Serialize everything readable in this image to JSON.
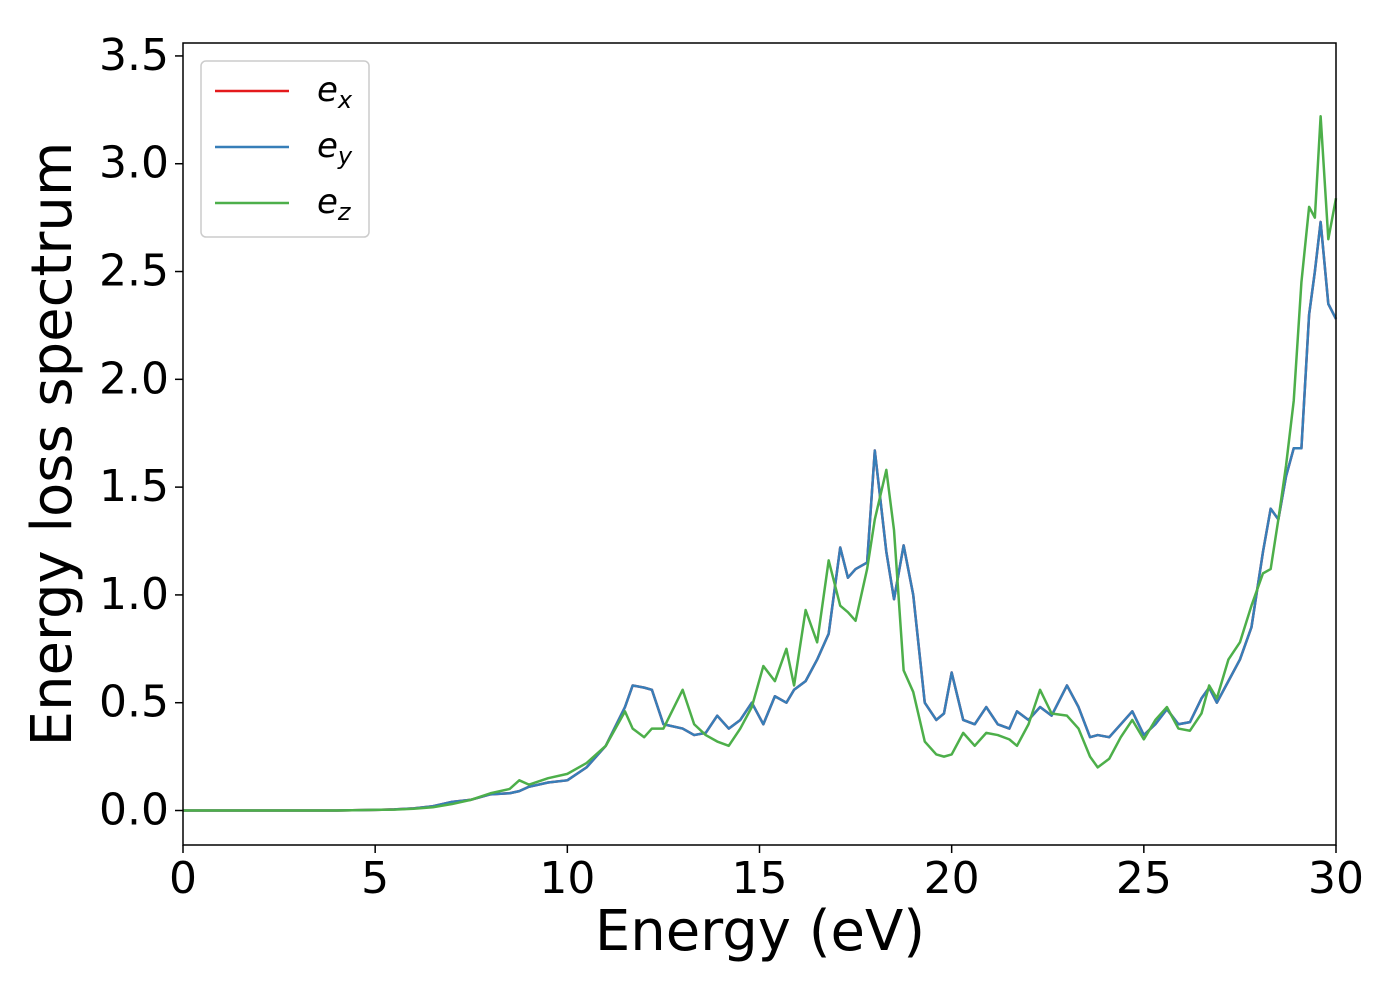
{
  "chart_data": {
    "type": "line",
    "xlabel": "Energy (eV)",
    "ylabel": "Energy loss spectrum",
    "x": [
      0,
      1,
      2,
      3,
      4,
      5,
      5.5,
      6,
      6.5,
      7,
      7.5,
      8,
      8.5,
      8.75,
      9,
      9.5,
      10,
      10.5,
      11,
      11.5,
      11.7,
      12,
      12.2,
      12.5,
      13,
      13.3,
      13.6,
      13.9,
      14.2,
      14.5,
      14.8,
      15.1,
      15.4,
      15.7,
      15.9,
      16.2,
      16.5,
      16.8,
      17.1,
      17.3,
      17.5,
      17.8,
      18,
      18.3,
      18.5,
      18.75,
      19,
      19.3,
      19.6,
      19.8,
      20,
      20.3,
      20.6,
      20.9,
      21.2,
      21.5,
      21.7,
      22,
      22.3,
      22.6,
      23,
      23.3,
      23.6,
      23.8,
      24.1,
      24.4,
      24.7,
      25,
      25.3,
      25.6,
      25.9,
      26.2,
      26.5,
      26.7,
      26.9,
      27.2,
      27.5,
      27.8,
      28.1,
      28.3,
      28.5,
      28.7,
      28.9,
      29.1,
      29.3,
      29.45,
      29.6,
      29.8,
      30
    ],
    "series": [
      {
        "name": "ex",
        "color": "#e41a1c",
        "values": [
          0,
          0,
          0,
          0,
          0,
          0.003,
          0.005,
          0.01,
          0.02,
          0.04,
          0.05,
          0.075,
          0.08,
          0.09,
          0.11,
          0.13,
          0.14,
          0.2,
          0.3,
          0.48,
          0.58,
          0.57,
          0.56,
          0.4,
          0.38,
          0.35,
          0.36,
          0.44,
          0.38,
          0.42,
          0.5,
          0.4,
          0.53,
          0.5,
          0.56,
          0.6,
          0.7,
          0.82,
          1.22,
          1.08,
          1.12,
          1.15,
          1.67,
          1.2,
          0.98,
          1.23,
          1.0,
          0.5,
          0.42,
          0.45,
          0.64,
          0.42,
          0.4,
          0.48,
          0.4,
          0.38,
          0.46,
          0.42,
          0.48,
          0.44,
          0.58,
          0.48,
          0.34,
          0.35,
          0.34,
          0.4,
          0.46,
          0.35,
          0.4,
          0.47,
          0.4,
          0.41,
          0.52,
          0.57,
          0.5,
          0.6,
          0.7,
          0.85,
          1.2,
          1.4,
          1.35,
          1.55,
          1.68,
          1.68,
          2.3,
          2.5,
          2.73,
          2.35,
          2.28
        ]
      },
      {
        "name": "ey",
        "color": "#377eb8",
        "values": [
          0,
          0,
          0,
          0,
          0,
          0.003,
          0.005,
          0.01,
          0.02,
          0.04,
          0.05,
          0.075,
          0.08,
          0.09,
          0.11,
          0.13,
          0.14,
          0.2,
          0.3,
          0.48,
          0.58,
          0.57,
          0.56,
          0.4,
          0.38,
          0.35,
          0.36,
          0.44,
          0.38,
          0.42,
          0.5,
          0.4,
          0.53,
          0.5,
          0.56,
          0.6,
          0.7,
          0.82,
          1.22,
          1.08,
          1.12,
          1.15,
          1.67,
          1.2,
          0.98,
          1.23,
          1.0,
          0.5,
          0.42,
          0.45,
          0.64,
          0.42,
          0.4,
          0.48,
          0.4,
          0.38,
          0.46,
          0.42,
          0.48,
          0.44,
          0.58,
          0.48,
          0.34,
          0.35,
          0.34,
          0.4,
          0.46,
          0.35,
          0.4,
          0.47,
          0.4,
          0.41,
          0.52,
          0.57,
          0.5,
          0.6,
          0.7,
          0.85,
          1.2,
          1.4,
          1.35,
          1.55,
          1.68,
          1.68,
          2.3,
          2.5,
          2.73,
          2.35,
          2.28
        ]
      },
      {
        "name": "ez",
        "color": "#4daf4a",
        "values": [
          0,
          0,
          0,
          0,
          0,
          0.003,
          0.004,
          0.008,
          0.015,
          0.03,
          0.05,
          0.08,
          0.1,
          0.14,
          0.12,
          0.15,
          0.17,
          0.22,
          0.3,
          0.46,
          0.38,
          0.34,
          0.38,
          0.38,
          0.56,
          0.4,
          0.35,
          0.32,
          0.3,
          0.38,
          0.48,
          0.67,
          0.6,
          0.75,
          0.58,
          0.93,
          0.78,
          1.16,
          0.95,
          0.92,
          0.88,
          1.12,
          1.35,
          1.58,
          1.3,
          0.65,
          0.55,
          0.32,
          0.26,
          0.25,
          0.26,
          0.36,
          0.3,
          0.36,
          0.35,
          0.33,
          0.3,
          0.4,
          0.56,
          0.45,
          0.44,
          0.38,
          0.25,
          0.2,
          0.24,
          0.34,
          0.42,
          0.33,
          0.42,
          0.48,
          0.38,
          0.37,
          0.45,
          0.58,
          0.52,
          0.7,
          0.78,
          0.95,
          1.1,
          1.12,
          1.35,
          1.6,
          1.9,
          2.45,
          2.8,
          2.75,
          3.22,
          2.65,
          2.84
        ]
      }
    ],
    "xlim": [
      0,
      30
    ],
    "xticks": [
      0,
      5,
      10,
      15,
      20,
      25,
      30
    ],
    "ylim": [
      -0.16,
      3.56
    ],
    "yticks": [
      {
        "value": 0,
        "label": "0.0"
      },
      {
        "value": 0.5,
        "label": "0.5"
      },
      {
        "value": 1,
        "label": "1.0"
      },
      {
        "value": 1.5,
        "label": "1.5"
      },
      {
        "value": 2,
        "label": "2.0"
      },
      {
        "value": 2.5,
        "label": "2.5"
      },
      {
        "value": 3,
        "label": "3.0"
      },
      {
        "value": 3.5,
        "label": "3.5"
      }
    ],
    "grid": false,
    "legend": "upper left"
  }
}
